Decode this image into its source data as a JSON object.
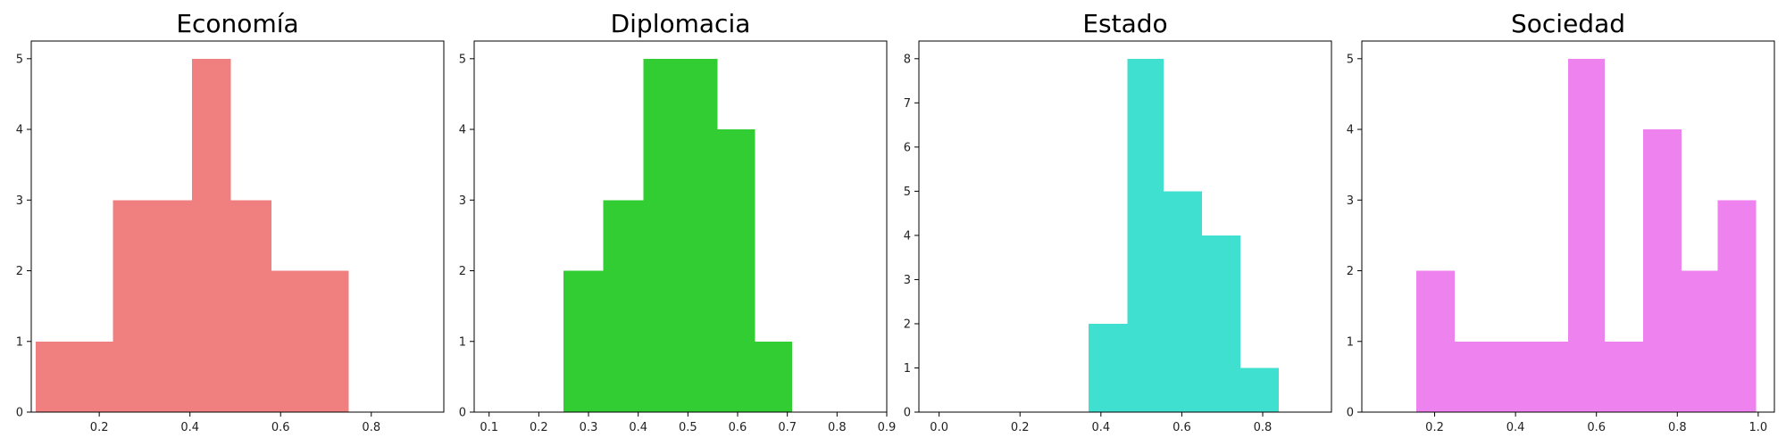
{
  "chart_data": [
    {
      "type": "bar",
      "title": "Economía",
      "color": "#f08080",
      "bins": [
        {
          "x0": 0.06,
          "x1": 0.145,
          "count": 1
        },
        {
          "x0": 0.145,
          "x1": 0.23,
          "count": 1
        },
        {
          "x0": 0.23,
          "x1": 0.32,
          "count": 3
        },
        {
          "x0": 0.32,
          "x1": 0.405,
          "count": 3
        },
        {
          "x0": 0.405,
          "x1": 0.49,
          "count": 5
        },
        {
          "x0": 0.49,
          "x1": 0.58,
          "count": 3
        },
        {
          "x0": 0.58,
          "x1": 0.665,
          "count": 2
        },
        {
          "x0": 0.665,
          "x1": 0.75,
          "count": 2
        }
      ],
      "xlim": [
        0.05,
        0.96
      ],
      "ylim": [
        0,
        5.25
      ],
      "xticks": [
        0.2,
        0.4,
        0.6,
        0.8
      ],
      "xtick_labels": [
        "0.2",
        "0.4",
        "0.6",
        "0.8"
      ],
      "yticks": [
        0,
        1,
        2,
        3,
        4,
        5
      ],
      "ytick_labels": [
        "0",
        "1",
        "2",
        "3",
        "4",
        "5"
      ]
    },
    {
      "type": "bar",
      "title": "Diplomacia",
      "color": "#32cd32",
      "bins": [
        {
          "x0": 0.25,
          "x1": 0.33,
          "count": 2
        },
        {
          "x0": 0.33,
          "x1": 0.41,
          "count": 3
        },
        {
          "x0": 0.41,
          "x1": 0.485,
          "count": 5
        },
        {
          "x0": 0.485,
          "x1": 0.56,
          "count": 5
        },
        {
          "x0": 0.56,
          "x1": 0.635,
          "count": 4
        },
        {
          "x0": 0.635,
          "x1": 0.71,
          "count": 1
        }
      ],
      "xlim": [
        0.07,
        0.9
      ],
      "ylim": [
        0,
        5.25
      ],
      "xticks": [
        0.1,
        0.2,
        0.3,
        0.4,
        0.5,
        0.6,
        0.7,
        0.8,
        0.9
      ],
      "xtick_labels": [
        "0.1",
        "0.2",
        "0.3",
        "0.4",
        "0.5",
        "0.6",
        "0.7",
        "0.8",
        "0.9"
      ],
      "yticks": [
        0,
        1,
        2,
        3,
        4,
        5
      ],
      "ytick_labels": [
        "0",
        "1",
        "2",
        "3",
        "4",
        "5"
      ]
    },
    {
      "type": "bar",
      "title": "Estado",
      "color": "#40e0d0",
      "bins": [
        {
          "x0": 0.37,
          "x1": 0.465,
          "count": 2
        },
        {
          "x0": 0.465,
          "x1": 0.555,
          "count": 8
        },
        {
          "x0": 0.555,
          "x1": 0.65,
          "count": 5
        },
        {
          "x0": 0.65,
          "x1": 0.745,
          "count": 4
        },
        {
          "x0": 0.745,
          "x1": 0.84,
          "count": 1
        }
      ],
      "xlim": [
        -0.05,
        0.97
      ],
      "ylim": [
        0,
        8.4
      ],
      "xticks": [
        0.0,
        0.2,
        0.4,
        0.6,
        0.8
      ],
      "xtick_labels": [
        "0.0",
        "0.2",
        "0.4",
        "0.6",
        "0.8"
      ],
      "yticks": [
        0,
        1,
        2,
        3,
        4,
        5,
        6,
        7,
        8
      ],
      "ytick_labels": [
        "0",
        "1",
        "2",
        "3",
        "4",
        "5",
        "6",
        "7",
        "8"
      ]
    },
    {
      "type": "bar",
      "title": "Sociedad",
      "color": "#ee82ee",
      "bins": [
        {
          "x0": 0.155,
          "x1": 0.25,
          "count": 2
        },
        {
          "x0": 0.25,
          "x1": 0.34,
          "count": 1
        },
        {
          "x0": 0.34,
          "x1": 0.435,
          "count": 1
        },
        {
          "x0": 0.435,
          "x1": 0.53,
          "count": 1
        },
        {
          "x0": 0.53,
          "x1": 0.62,
          "count": 5
        },
        {
          "x0": 0.62,
          "x1": 0.715,
          "count": 1
        },
        {
          "x0": 0.715,
          "x1": 0.81,
          "count": 4
        },
        {
          "x0": 0.81,
          "x1": 0.9,
          "count": 2
        },
        {
          "x0": 0.9,
          "x1": 0.995,
          "count": 3
        }
      ],
      "xlim": [
        0.02,
        1.04
      ],
      "ylim": [
        0,
        5.25
      ],
      "xticks": [
        0.2,
        0.4,
        0.6,
        0.8,
        1.0
      ],
      "xtick_labels": [
        "0.2",
        "0.4",
        "0.6",
        "0.8",
        "1.0"
      ],
      "yticks": [
        0,
        1,
        2,
        3,
        4,
        5
      ],
      "ytick_labels": [
        "0",
        "1",
        "2",
        "3",
        "4",
        "5"
      ]
    }
  ]
}
